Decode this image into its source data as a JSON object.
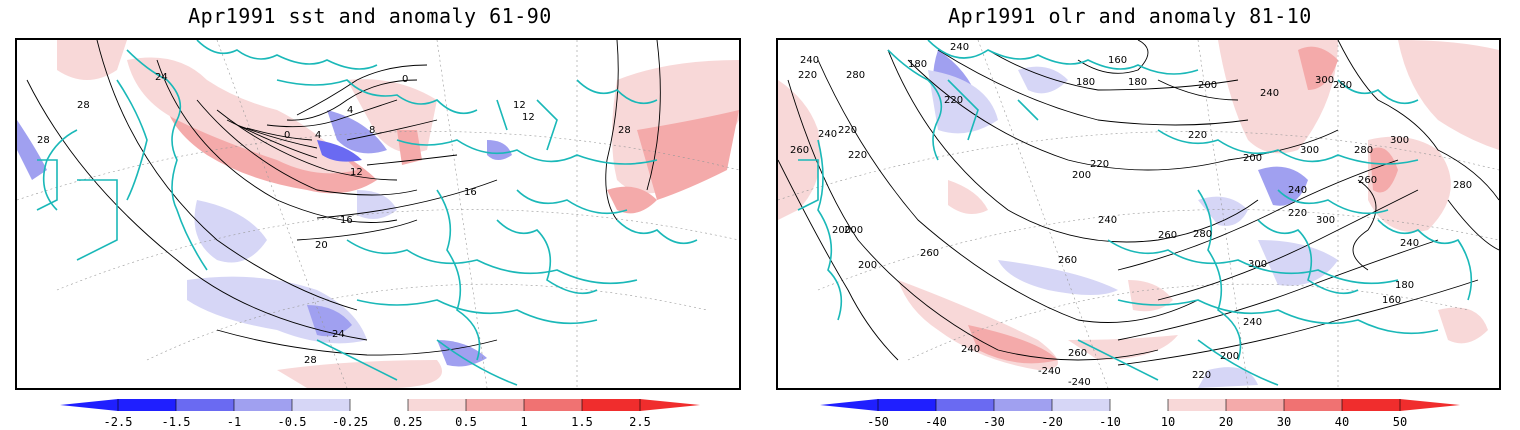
{
  "left_panel": {
    "title": "Apr1991 sst and anomaly 61-90",
    "contour_labels": [
      "24",
      "28",
      "28",
      "0",
      "0",
      "4",
      "4",
      "8",
      "12",
      "12",
      "16",
      "16",
      "20",
      "24",
      "28",
      "12",
      "28"
    ],
    "colorbar_ticks": [
      "-2.5",
      "-1.5",
      "-1",
      "-0.5",
      "-0.25",
      "0.25",
      "0.5",
      "1",
      "1.5",
      "2.5"
    ]
  },
  "right_panel": {
    "title": "Apr1991 olr and anomaly 81-10",
    "contour_labels": [
      "240",
      "220",
      "280",
      "180",
      "180",
      "160",
      "180",
      "200",
      "200",
      "220",
      "240",
      "300",
      "240",
      "280",
      "220",
      "240",
      "260",
      "220",
      "200",
      "220",
      "220",
      "240",
      "260",
      "300",
      "200",
      "240",
      "260",
      "280",
      "300",
      "280",
      "200",
      "260",
      "260",
      "300",
      "220",
      "280",
      "300",
      "200",
      "240",
      "260",
      "240",
      "-240",
      "-240",
      "220",
      "200",
      "180",
      "160",
      "240"
    ],
    "colorbar_ticks": [
      "-50",
      "-40",
      "-30",
      "-20",
      "-10",
      "10",
      "20",
      "30",
      "40",
      "50"
    ]
  },
  "colors": {
    "neg_strong": "#1f1fff",
    "neg_3": "#6a6af2",
    "neg_2": "#a0a0f0",
    "neg_1": "#d6d6f6",
    "pos_1": "#f8d8d8",
    "pos_2": "#f4aaaa",
    "pos_3": "#f07272",
    "pos_strong": "#f02d2d",
    "coast": "#1ab8b8",
    "contour": "#000000"
  }
}
